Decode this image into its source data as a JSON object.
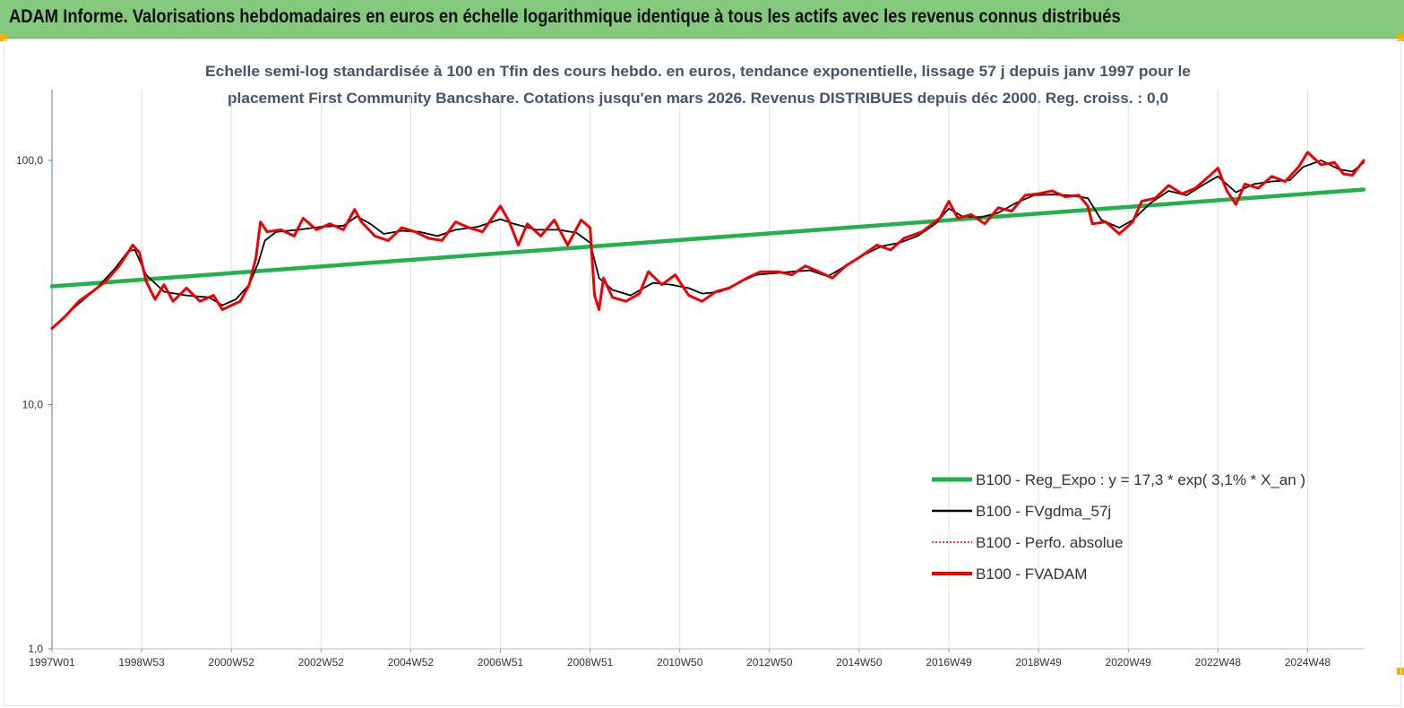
{
  "header": {
    "title": "ADAM Informe. Valorisations hebdomadaires en euros en échelle logarithmique identique à tous les actifs avec les revenus connus distribués"
  },
  "colors": {
    "header_bg": "#84c97d",
    "corner": "#f0b400",
    "regression": "#22b14c",
    "smooth": "#000000",
    "perf_absolue": "#e00000",
    "fvadam": "#ee0000",
    "title": "#44546a"
  },
  "chart_data": {
    "type": "line",
    "title_lines": [
      "Echelle semi-log standardisée à 100 en Tfin des cours hebdo. en euros, tendance exponentielle, lissage 57 j depuis janv 1997 pour le",
      "placement First Community Bancshare. Cotations jusqu'en mars 2026. Revenus DISTRIBUES depuis déc 2000. Reg. croiss. : 0,0"
    ],
    "y_scale": "log",
    "ylim": [
      1,
      100
    ],
    "y_ticks": [
      "1,0",
      "10,0",
      "100,0"
    ],
    "xlim": [
      1997.0,
      2026.25
    ],
    "x_ticks": [
      {
        "label": "1997W01",
        "x": 1997.0
      },
      {
        "label": "1998W53",
        "x": 1999.0
      },
      {
        "label": "2000W52",
        "x": 2001.0
      },
      {
        "label": "2002W52",
        "x": 2003.0
      },
      {
        "label": "2004W52",
        "x": 2005.0
      },
      {
        "label": "2006W51",
        "x": 2007.0
      },
      {
        "label": "2008W51",
        "x": 2009.0
      },
      {
        "label": "2010W50",
        "x": 2011.0
      },
      {
        "label": "2012W50",
        "x": 2013.0
      },
      {
        "label": "2014W50",
        "x": 2015.0
      },
      {
        "label": "2016W49",
        "x": 2017.0
      },
      {
        "label": "2018W49",
        "x": 2019.0
      },
      {
        "label": "2020W49",
        "x": 2021.0
      },
      {
        "label": "2022W48",
        "x": 2023.0
      },
      {
        "label": "2024W48",
        "x": 2025.0
      }
    ],
    "grid": "vertical",
    "legend_position": "lower-right",
    "series": [
      {
        "name": "B100 - Reg_Expo : y = 17,3 *  exp( 3,1% *  X_an )",
        "style": "regression",
        "points": [
          [
            1997.0,
            30.5
          ],
          [
            2026.25,
            76.0
          ]
        ]
      },
      {
        "name": "B100 - FVgdma_57j",
        "style": "smooth",
        "points": [
          [
            1997.0,
            20.5
          ],
          [
            1997.5,
            25.0
          ],
          [
            1998.0,
            30.0
          ],
          [
            1998.4,
            36.0
          ],
          [
            1998.7,
            42.5
          ],
          [
            1998.85,
            43.0
          ],
          [
            1999.1,
            34.0
          ],
          [
            1999.5,
            29.0
          ],
          [
            2000.0,
            28.0
          ],
          [
            2000.5,
            27.5
          ],
          [
            2000.8,
            25.5
          ],
          [
            2001.1,
            27.0
          ],
          [
            2001.4,
            31.0
          ],
          [
            2001.6,
            38.0
          ],
          [
            2001.75,
            47.0
          ],
          [
            2002.0,
            51.0
          ],
          [
            2002.5,
            52.0
          ],
          [
            2003.0,
            53.5
          ],
          [
            2003.5,
            54.0
          ],
          [
            2003.8,
            59.0
          ],
          [
            2004.1,
            55.0
          ],
          [
            2004.4,
            50.0
          ],
          [
            2004.8,
            51.5
          ],
          [
            2005.2,
            51.0
          ],
          [
            2005.6,
            49.0
          ],
          [
            2006.0,
            52.0
          ],
          [
            2006.5,
            53.5
          ],
          [
            2007.0,
            57.5
          ],
          [
            2007.3,
            55.0
          ],
          [
            2007.8,
            52.0
          ],
          [
            2008.3,
            52.0
          ],
          [
            2008.7,
            50.5
          ],
          [
            2009.0,
            46.0
          ],
          [
            2009.2,
            33.0
          ],
          [
            2009.5,
            29.5
          ],
          [
            2009.9,
            28.0
          ],
          [
            2010.4,
            31.5
          ],
          [
            2010.8,
            31.0
          ],
          [
            2011.2,
            30.0
          ],
          [
            2011.5,
            28.5
          ],
          [
            2011.9,
            29.0
          ],
          [
            2012.3,
            31.5
          ],
          [
            2012.7,
            34.0
          ],
          [
            2013.1,
            34.5
          ],
          [
            2013.5,
            35.0
          ],
          [
            2013.9,
            35.5
          ],
          [
            2014.3,
            33.5
          ],
          [
            2014.7,
            37.0
          ],
          [
            2015.1,
            41.0
          ],
          [
            2015.5,
            44.5
          ],
          [
            2015.9,
            46.0
          ],
          [
            2016.3,
            49.0
          ],
          [
            2016.7,
            55.0
          ],
          [
            2017.0,
            63.5
          ],
          [
            2017.3,
            59.0
          ],
          [
            2017.7,
            58.5
          ],
          [
            2018.1,
            61.0
          ],
          [
            2018.5,
            67.0
          ],
          [
            2018.9,
            72.0
          ],
          [
            2019.3,
            72.5
          ],
          [
            2019.7,
            72.0
          ],
          [
            2020.1,
            70.0
          ],
          [
            2020.4,
            57.0
          ],
          [
            2020.8,
            53.0
          ],
          [
            2021.1,
            57.0
          ],
          [
            2021.5,
            67.0
          ],
          [
            2021.9,
            75.0
          ],
          [
            2022.3,
            72.0
          ],
          [
            2022.7,
            80.0
          ],
          [
            2023.0,
            86.0
          ],
          [
            2023.4,
            74.0
          ],
          [
            2023.8,
            80.0
          ],
          [
            2024.2,
            82.0
          ],
          [
            2024.6,
            83.0
          ],
          [
            2024.9,
            94.0
          ],
          [
            2025.3,
            100.0
          ],
          [
            2025.7,
            92.0
          ],
          [
            2026.0,
            90.0
          ],
          [
            2026.25,
            98.0
          ]
        ]
      },
      {
        "name": "B100 - Perfo. absolue",
        "style": "dotted",
        "points": []
      },
      {
        "name": "B100 - FVADAM",
        "style": "main",
        "points": [
          [
            1997.0,
            20.5
          ],
          [
            1997.3,
            23.0
          ],
          [
            1997.6,
            26.5
          ],
          [
            1997.9,
            29.0
          ],
          [
            1998.2,
            32.0
          ],
          [
            1998.5,
            37.0
          ],
          [
            1998.8,
            45.0
          ],
          [
            1998.95,
            42.0
          ],
          [
            1999.1,
            32.0
          ],
          [
            1999.3,
            27.0
          ],
          [
            1999.5,
            31.0
          ],
          [
            1999.7,
            26.5
          ],
          [
            2000.0,
            30.0
          ],
          [
            2000.3,
            26.5
          ],
          [
            2000.6,
            28.0
          ],
          [
            2000.8,
            24.5
          ],
          [
            2001.0,
            25.5
          ],
          [
            2001.2,
            26.5
          ],
          [
            2001.4,
            31.0
          ],
          [
            2001.55,
            40.0
          ],
          [
            2001.65,
            56.0
          ],
          [
            2001.8,
            51.0
          ],
          [
            2002.1,
            52.0
          ],
          [
            2002.4,
            49.0
          ],
          [
            2002.6,
            58.0
          ],
          [
            2002.9,
            52.0
          ],
          [
            2003.2,
            55.0
          ],
          [
            2003.5,
            52.0
          ],
          [
            2003.75,
            63.0
          ],
          [
            2003.9,
            56.0
          ],
          [
            2004.2,
            49.0
          ],
          [
            2004.5,
            47.0
          ],
          [
            2004.8,
            53.0
          ],
          [
            2005.1,
            51.0
          ],
          [
            2005.4,
            48.0
          ],
          [
            2005.7,
            47.0
          ],
          [
            2006.0,
            56.0
          ],
          [
            2006.3,
            53.0
          ],
          [
            2006.6,
            51.0
          ],
          [
            2007.0,
            65.0
          ],
          [
            2007.2,
            56.0
          ],
          [
            2007.4,
            45.0
          ],
          [
            2007.6,
            55.0
          ],
          [
            2007.9,
            49.0
          ],
          [
            2008.2,
            57.0
          ],
          [
            2008.5,
            45.0
          ],
          [
            2008.8,
            57.0
          ],
          [
            2009.0,
            53.0
          ],
          [
            2009.1,
            28.0
          ],
          [
            2009.2,
            24.5
          ],
          [
            2009.3,
            33.0
          ],
          [
            2009.5,
            27.5
          ],
          [
            2009.8,
            26.5
          ],
          [
            2010.1,
            28.5
          ],
          [
            2010.3,
            35.0
          ],
          [
            2010.6,
            31.0
          ],
          [
            2010.9,
            34.0
          ],
          [
            2011.2,
            28.0
          ],
          [
            2011.5,
            26.5
          ],
          [
            2011.8,
            29.0
          ],
          [
            2012.1,
            30.0
          ],
          [
            2012.5,
            33.0
          ],
          [
            2012.8,
            35.0
          ],
          [
            2013.2,
            35.0
          ],
          [
            2013.5,
            34.0
          ],
          [
            2013.8,
            37.0
          ],
          [
            2014.1,
            35.0
          ],
          [
            2014.4,
            33.0
          ],
          [
            2014.7,
            37.0
          ],
          [
            2015.0,
            40.0
          ],
          [
            2015.4,
            45.0
          ],
          [
            2015.7,
            43.0
          ],
          [
            2016.0,
            48.0
          ],
          [
            2016.4,
            51.0
          ],
          [
            2016.8,
            58.0
          ],
          [
            2017.0,
            68.0
          ],
          [
            2017.2,
            58.0
          ],
          [
            2017.5,
            60.0
          ],
          [
            2017.8,
            55.0
          ],
          [
            2018.1,
            64.0
          ],
          [
            2018.4,
            62.0
          ],
          [
            2018.7,
            72.0
          ],
          [
            2019.0,
            73.0
          ],
          [
            2019.3,
            75.0
          ],
          [
            2019.6,
            71.0
          ],
          [
            2019.9,
            72.0
          ],
          [
            2020.1,
            65.0
          ],
          [
            2020.2,
            55.0
          ],
          [
            2020.5,
            56.0
          ],
          [
            2020.8,
            50.0
          ],
          [
            2021.1,
            56.0
          ],
          [
            2021.3,
            68.0
          ],
          [
            2021.6,
            70.0
          ],
          [
            2021.9,
            79.0
          ],
          [
            2022.2,
            73.0
          ],
          [
            2022.5,
            77.0
          ],
          [
            2022.8,
            86.0
          ],
          [
            2023.0,
            93.0
          ],
          [
            2023.2,
            75.0
          ],
          [
            2023.4,
            66.0
          ],
          [
            2023.6,
            80.0
          ],
          [
            2023.9,
            77.0
          ],
          [
            2024.2,
            86.0
          ],
          [
            2024.5,
            82.0
          ],
          [
            2024.8,
            94.0
          ],
          [
            2025.0,
            108.0
          ],
          [
            2025.3,
            96.0
          ],
          [
            2025.6,
            98.0
          ],
          [
            2025.8,
            88.0
          ],
          [
            2026.0,
            87.0
          ],
          [
            2026.1,
            92.0
          ],
          [
            2026.25,
            100.0
          ]
        ]
      }
    ]
  }
}
